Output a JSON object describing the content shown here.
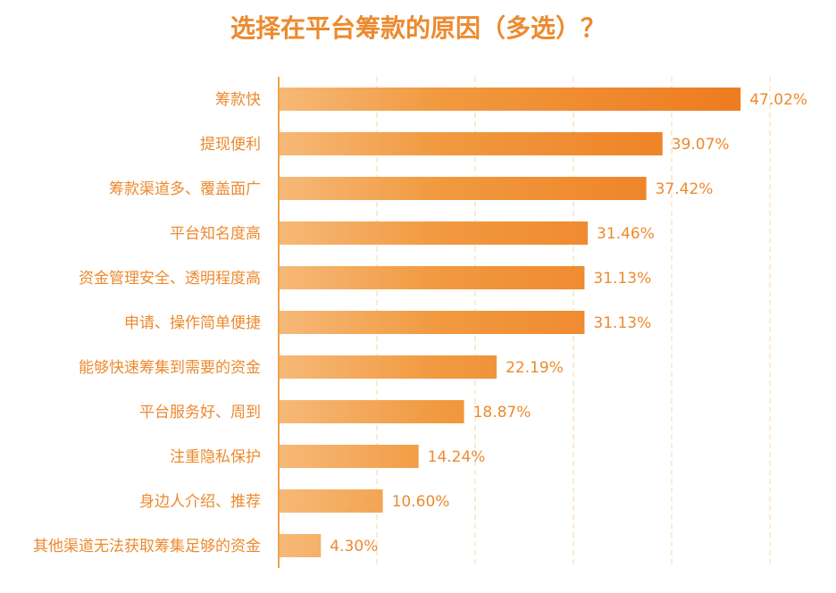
{
  "chart_data": {
    "type": "bar",
    "orientation": "horizontal",
    "title": "选择在平台筹款的原因（多选）？",
    "categories": [
      "筹款快",
      "提现便利",
      "筹款渠道多、覆盖面广",
      "平台知名度高",
      "资金管理安全、透明程度高",
      "申请、操作简单便捷",
      "能够快速筹集到需要的资金",
      "平台服务好、周到",
      "注重隐私保护",
      "身边人介绍、推荐",
      "其他渠道无法获取筹集足够的资金"
    ],
    "values": [
      47.02,
      39.07,
      37.42,
      31.46,
      31.13,
      31.13,
      22.19,
      18.87,
      14.24,
      10.6,
      4.3
    ],
    "value_labels": [
      "47.02%",
      "39.07%",
      "37.42%",
      "31.46%",
      "31.13%",
      "31.13%",
      "22.19%",
      "18.87%",
      "14.24%",
      "10.60%",
      "4.30%"
    ],
    "xlim": [
      0,
      50
    ],
    "grid": true,
    "colors": {
      "bar_start": "#f6b978",
      "bar_end": "#ee7d22",
      "text": "#ec8a2e",
      "axis": "#f0a050",
      "grid": "#f5d7a8"
    }
  }
}
